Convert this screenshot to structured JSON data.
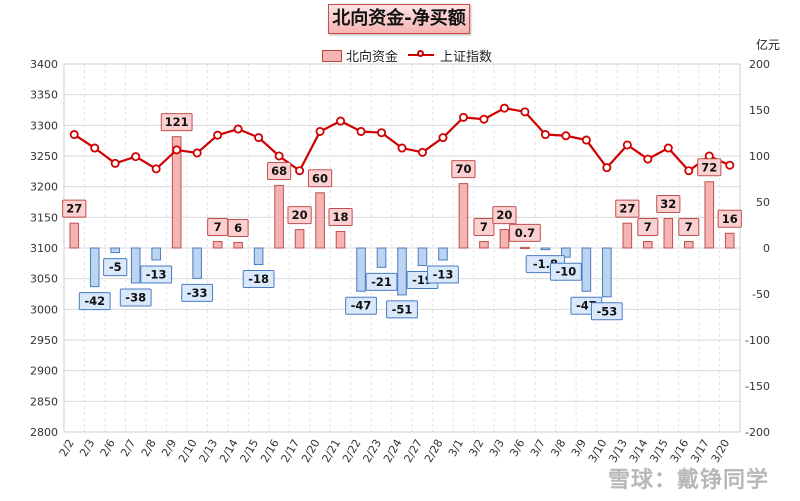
{
  "chart_data": {
    "type": "bar+line",
    "title": "北向资金-净买额",
    "unit_right": "亿元",
    "categories": [
      "2/2",
      "2/3",
      "2/6",
      "2/7",
      "2/8",
      "2/9",
      "2/10",
      "2/13",
      "2/14",
      "2/15",
      "2/16",
      "2/17",
      "2/20",
      "2/21",
      "2/22",
      "2/23",
      "2/24",
      "2/27",
      "2/28",
      "3/1",
      "3/2",
      "3/3",
      "3/6",
      "3/7",
      "3/8",
      "3/9",
      "3/10",
      "3/13",
      "3/14",
      "3/15",
      "3/16",
      "3/17",
      "3/20"
    ],
    "series": [
      {
        "name": "北向资金",
        "axis": "right",
        "values": [
          27,
          -42,
          -5,
          -38,
          -13,
          121,
          -33,
          7,
          6,
          -18,
          68,
          20,
          60,
          18,
          -47,
          -21,
          -51,
          -19,
          -13,
          70,
          7,
          20,
          0.7,
          -1.8,
          -10,
          -47,
          -53,
          27,
          7,
          32,
          7,
          72,
          16
        ],
        "labels": [
          "27",
          "-42",
          "-5",
          "-38",
          "-13",
          "121",
          "-33",
          "7",
          "6",
          "-18",
          "68",
          "20",
          "60",
          "18",
          "-47",
          "-21",
          "-51",
          "-19",
          "-13",
          "70",
          "7",
          "20",
          "0.7",
          "-1.8",
          "-10",
          "-47",
          "-53",
          "27",
          "7",
          "32",
          "7",
          "72",
          "16"
        ]
      },
      {
        "name": "上证指数",
        "axis": "left",
        "values": [
          3285,
          3263,
          3238,
          3249,
          3229,
          3260,
          3255,
          3284,
          3294,
          3280,
          3250,
          3226,
          3290,
          3307,
          3290,
          3288,
          3263,
          3256,
          3280,
          3313,
          3310,
          3328,
          3322,
          3285,
          3283,
          3276,
          3231,
          3268,
          3245,
          3263,
          3226,
          3250,
          3235
        ]
      }
    ],
    "y_left": {
      "min": 2800,
      "max": 3400,
      "step": 50
    },
    "y_right": {
      "min": -200,
      "max": 200,
      "step": 50
    },
    "colors": {
      "bar_pos_fill": "#f5b4b4",
      "bar_pos_stroke": "#c0504d",
      "bar_neg_fill": "#bcd3f2",
      "bar_neg_stroke": "#4a7dbf",
      "line": "#d00000",
      "grid": "#d9d9d9"
    },
    "legend_position": "top-center",
    "grid": true
  },
  "watermark": "雪球：戴铮同学"
}
